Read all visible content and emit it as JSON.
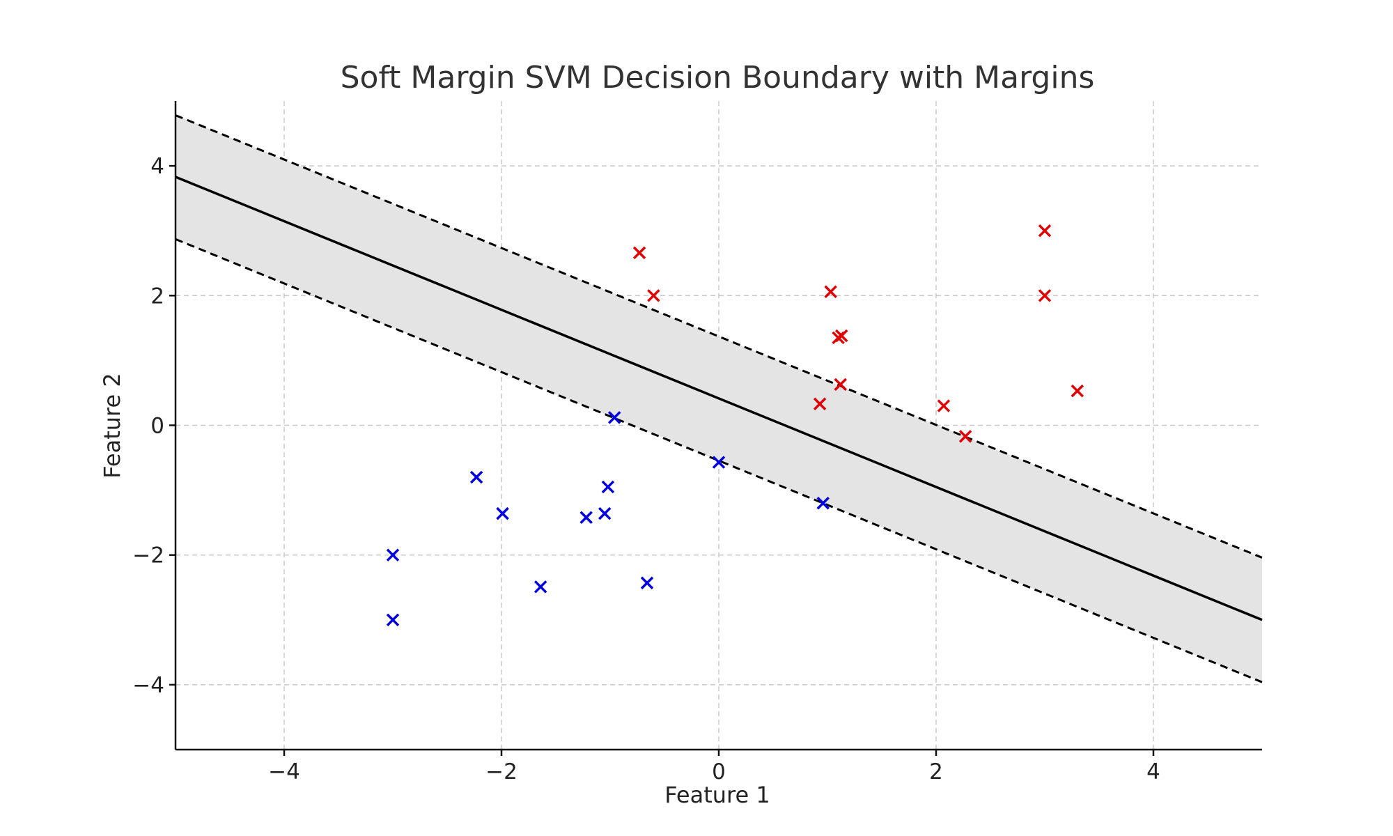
{
  "chart_data": {
    "type": "scatter",
    "title": "Soft Margin SVM Decision Boundary with Margins",
    "xlabel": "Feature 1",
    "ylabel": "Feature 2",
    "xlim": [
      -5,
      5
    ],
    "ylim": [
      -5,
      5
    ],
    "xticks": [
      -4,
      -2,
      0,
      2,
      4
    ],
    "yticks": [
      -4,
      -2,
      0,
      2,
      4
    ],
    "xtick_labels": [
      "−4",
      "−2",
      "0",
      "2",
      "4"
    ],
    "ytick_labels": [
      "−4",
      "−2",
      "0",
      "2",
      "4"
    ],
    "grid": true,
    "marker": "x",
    "decision_boundary": {
      "x": [
        -5,
        5
      ],
      "y": [
        3.83,
        -3.0
      ]
    },
    "margin_upper": {
      "x": [
        -5,
        5
      ],
      "y": [
        4.78,
        -2.04
      ]
    },
    "margin_lower": {
      "x": [
        -5,
        5
      ],
      "y": [
        2.87,
        -3.96
      ]
    },
    "margin_fill_color": "#e4e4e4",
    "series": [
      {
        "color": "#e00000",
        "points": [
          [
            -0.73,
            2.66
          ],
          [
            -0.6,
            2.0
          ],
          [
            1.03,
            2.06
          ],
          [
            1.13,
            1.38
          ],
          [
            1.1,
            1.35
          ],
          [
            1.12,
            0.63
          ],
          [
            0.93,
            0.33
          ],
          [
            2.07,
            0.3
          ],
          [
            2.27,
            -0.17
          ],
          [
            3.0,
            3.0
          ],
          [
            3.0,
            2.0
          ],
          [
            3.3,
            0.53
          ]
        ]
      },
      {
        "color": "#0000e0",
        "points": [
          [
            -0.96,
            0.12
          ],
          [
            0.0,
            -0.57
          ],
          [
            0.96,
            -1.2
          ],
          [
            -2.23,
            -0.8
          ],
          [
            -1.99,
            -1.36
          ],
          [
            -1.02,
            -0.95
          ],
          [
            -1.05,
            -1.36
          ],
          [
            -1.22,
            -1.42
          ],
          [
            -3.0,
            -2.0
          ],
          [
            -3.0,
            -3.0
          ],
          [
            -1.64,
            -2.49
          ],
          [
            -0.66,
            -2.43
          ]
        ]
      }
    ]
  }
}
